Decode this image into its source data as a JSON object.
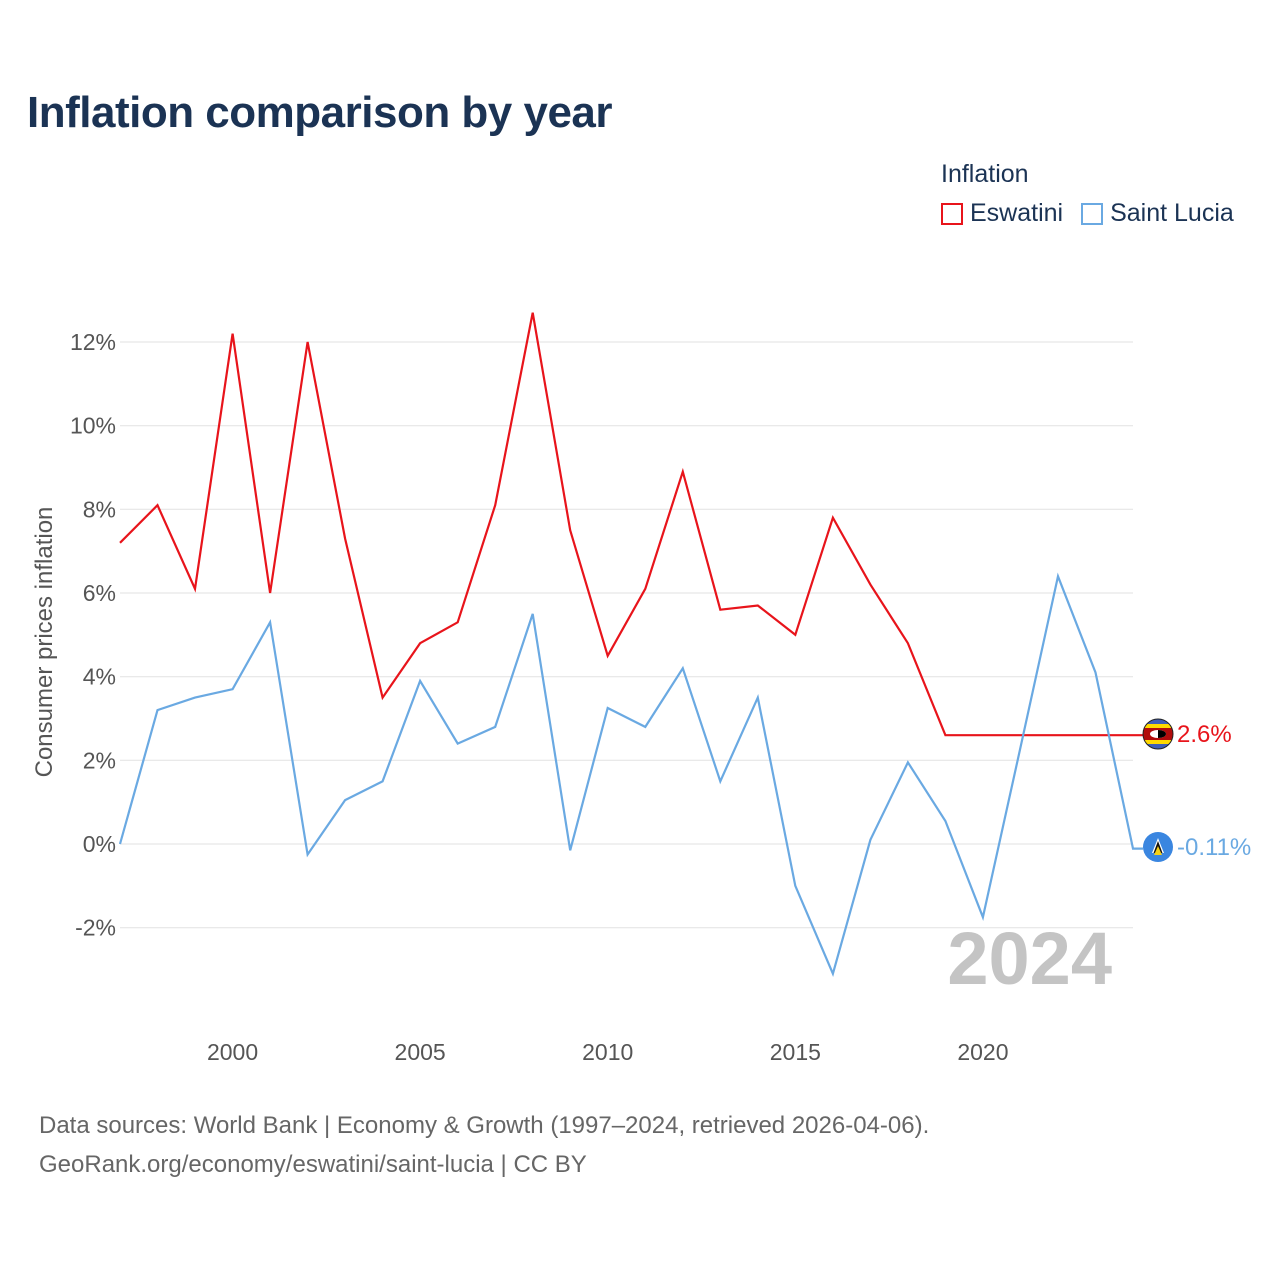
{
  "title": "Inflation comparison by year",
  "legend": {
    "title": "Inflation",
    "items": [
      {
        "label": "Eswatini",
        "color": "#e8141b"
      },
      {
        "label": "Saint Lucia",
        "color": "#6aa9e2"
      }
    ]
  },
  "year_watermark": "2024",
  "end_labels": {
    "eswatini": "2.6%",
    "saint_lucia": "-0.11%"
  },
  "source": {
    "line1": "Data sources: World Bank | Economy & Growth (1997–2024, retrieved 2026-04-06).",
    "line2": "GeoRank.org/economy/eswatini/saint-lucia | CC BY"
  },
  "chart_data": {
    "type": "line",
    "title": "Inflation comparison by year",
    "xlabel": "",
    "ylabel": "Consumer prices inflation",
    "xlim": [
      1997,
      2024
    ],
    "ylim": [
      -3.8,
      13.2
    ],
    "grid": true,
    "legend_position": "top-right",
    "x_ticks": [
      2000,
      2005,
      2010,
      2015,
      2020
    ],
    "y_ticks": [
      {
        "value": 12,
        "label": "12%"
      },
      {
        "value": 10,
        "label": "10%"
      },
      {
        "value": 8,
        "label": "8%"
      },
      {
        "value": 6,
        "label": "6%"
      },
      {
        "value": 4,
        "label": "4%"
      },
      {
        "value": 2,
        "label": "2%"
      },
      {
        "value": 0,
        "label": "0%"
      },
      {
        "value": -2,
        "label": "-2%"
      }
    ],
    "x": [
      1997,
      1998,
      1999,
      2000,
      2001,
      2002,
      2003,
      2004,
      2005,
      2006,
      2007,
      2008,
      2009,
      2010,
      2011,
      2012,
      2013,
      2014,
      2015,
      2016,
      2017,
      2018,
      2019,
      2020,
      2021,
      2022,
      2023,
      2024
    ],
    "series": [
      {
        "name": "Eswatini",
        "color": "#e8141b",
        "values": [
          7.2,
          8.1,
          6.1,
          12.2,
          6.0,
          12.0,
          7.3,
          3.5,
          4.8,
          5.3,
          8.1,
          12.7,
          7.5,
          4.5,
          6.1,
          8.9,
          5.6,
          5.7,
          5.0,
          7.8,
          6.2,
          4.8,
          2.6,
          2.6,
          2.6,
          2.6,
          2.6,
          2.6
        ],
        "end_label": "2.6%"
      },
      {
        "name": "Saint Lucia",
        "color": "#6aa9e2",
        "values": [
          0.0,
          3.2,
          3.5,
          3.7,
          5.3,
          -0.25,
          1.05,
          1.5,
          3.9,
          2.4,
          2.8,
          5.5,
          -0.15,
          3.25,
          2.8,
          4.2,
          1.5,
          3.5,
          -1.0,
          -3.1,
          0.1,
          1.95,
          0.55,
          -1.75,
          2.3,
          6.4,
          4.1,
          -0.11
        ],
        "end_label": "-0.11%"
      }
    ]
  }
}
